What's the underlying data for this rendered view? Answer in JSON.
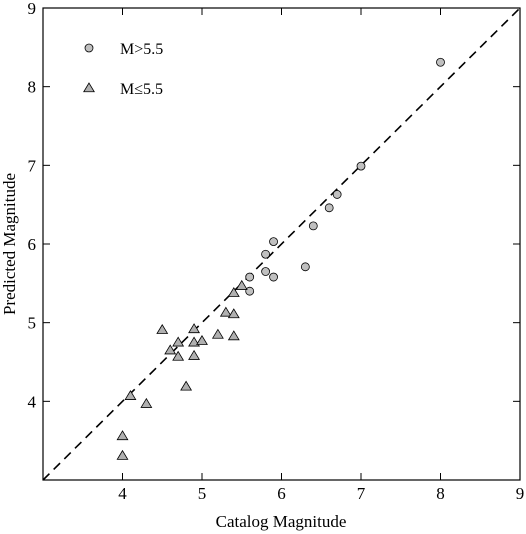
{
  "chart_data": {
    "type": "scatter",
    "xlabel": "Catalog Magnitude",
    "ylabel": "Predicted Magnitude",
    "xlim": [
      3,
      9
    ],
    "ylim": [
      3,
      9
    ],
    "x_ticks": [
      "4",
      "5",
      "6",
      "7",
      "8",
      "9"
    ],
    "y_ticks": [
      "4",
      "5",
      "6",
      "7",
      "8",
      "9"
    ],
    "grid": false,
    "legend_position": "top-left",
    "reference_line": {
      "style": "dashed",
      "from": [
        3,
        3
      ],
      "to": [
        9,
        9
      ],
      "color": "#000000"
    },
    "series": [
      {
        "name": "M>5.5",
        "marker": "circle",
        "color": "#c0c0c0",
        "points": [
          [
            5.6,
            5.4
          ],
          [
            5.6,
            5.58
          ],
          [
            5.8,
            5.65
          ],
          [
            5.8,
            5.87
          ],
          [
            5.9,
            5.58
          ],
          [
            5.9,
            6.03
          ],
          [
            6.3,
            5.71
          ],
          [
            6.4,
            6.23
          ],
          [
            6.6,
            6.46
          ],
          [
            6.7,
            6.63
          ],
          [
            7.0,
            6.99
          ],
          [
            8.0,
            8.31
          ]
        ]
      },
      {
        "name": "M≤5.5",
        "marker": "triangle",
        "color": "#b0b0b0",
        "points": [
          [
            4.0,
            3.31
          ],
          [
            4.0,
            3.56
          ],
          [
            4.1,
            4.07
          ],
          [
            4.3,
            3.97
          ],
          [
            4.5,
            4.91
          ],
          [
            4.6,
            4.65
          ],
          [
            4.7,
            4.57
          ],
          [
            4.7,
            4.75
          ],
          [
            4.8,
            4.19
          ],
          [
            4.9,
            4.58
          ],
          [
            4.9,
            4.75
          ],
          [
            4.9,
            4.92
          ],
          [
            5.0,
            4.77
          ],
          [
            5.2,
            4.85
          ],
          [
            5.3,
            5.13
          ],
          [
            5.4,
            4.83
          ],
          [
            5.4,
            5.11
          ],
          [
            5.4,
            5.38
          ],
          [
            5.5,
            5.47
          ]
        ]
      }
    ]
  }
}
